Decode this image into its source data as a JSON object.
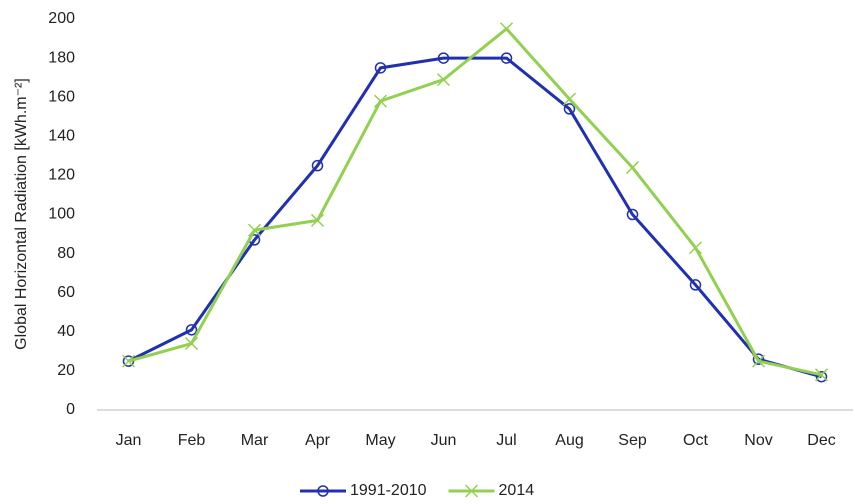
{
  "chart_data": {
    "type": "line",
    "y_label": "Global Horizontal Radiation [kWh.m⁻²]",
    "categories": [
      "Jan",
      "Feb",
      "Mar",
      "Apr",
      "May",
      "Jun",
      "Jul",
      "Aug",
      "Sep",
      "Oct",
      "Nov",
      "Dec"
    ],
    "series": [
      {
        "name": "1991-2010",
        "color": "#2130b0",
        "marker": "circle",
        "values": [
          25,
          41,
          87,
          125,
          175,
          180,
          180,
          154,
          100,
          64,
          26,
          17
        ]
      },
      {
        "name": "2014",
        "color": "#92d050",
        "marker": "x",
        "values": [
          25,
          34,
          92,
          97,
          158,
          169,
          195,
          159,
          124,
          83,
          25,
          18
        ]
      }
    ],
    "ylim": [
      0,
      200
    ],
    "yticks": [
      0,
      20,
      40,
      60,
      80,
      100,
      120,
      140,
      160,
      180,
      200
    ],
    "grid": false,
    "legend": "bottom"
  }
}
